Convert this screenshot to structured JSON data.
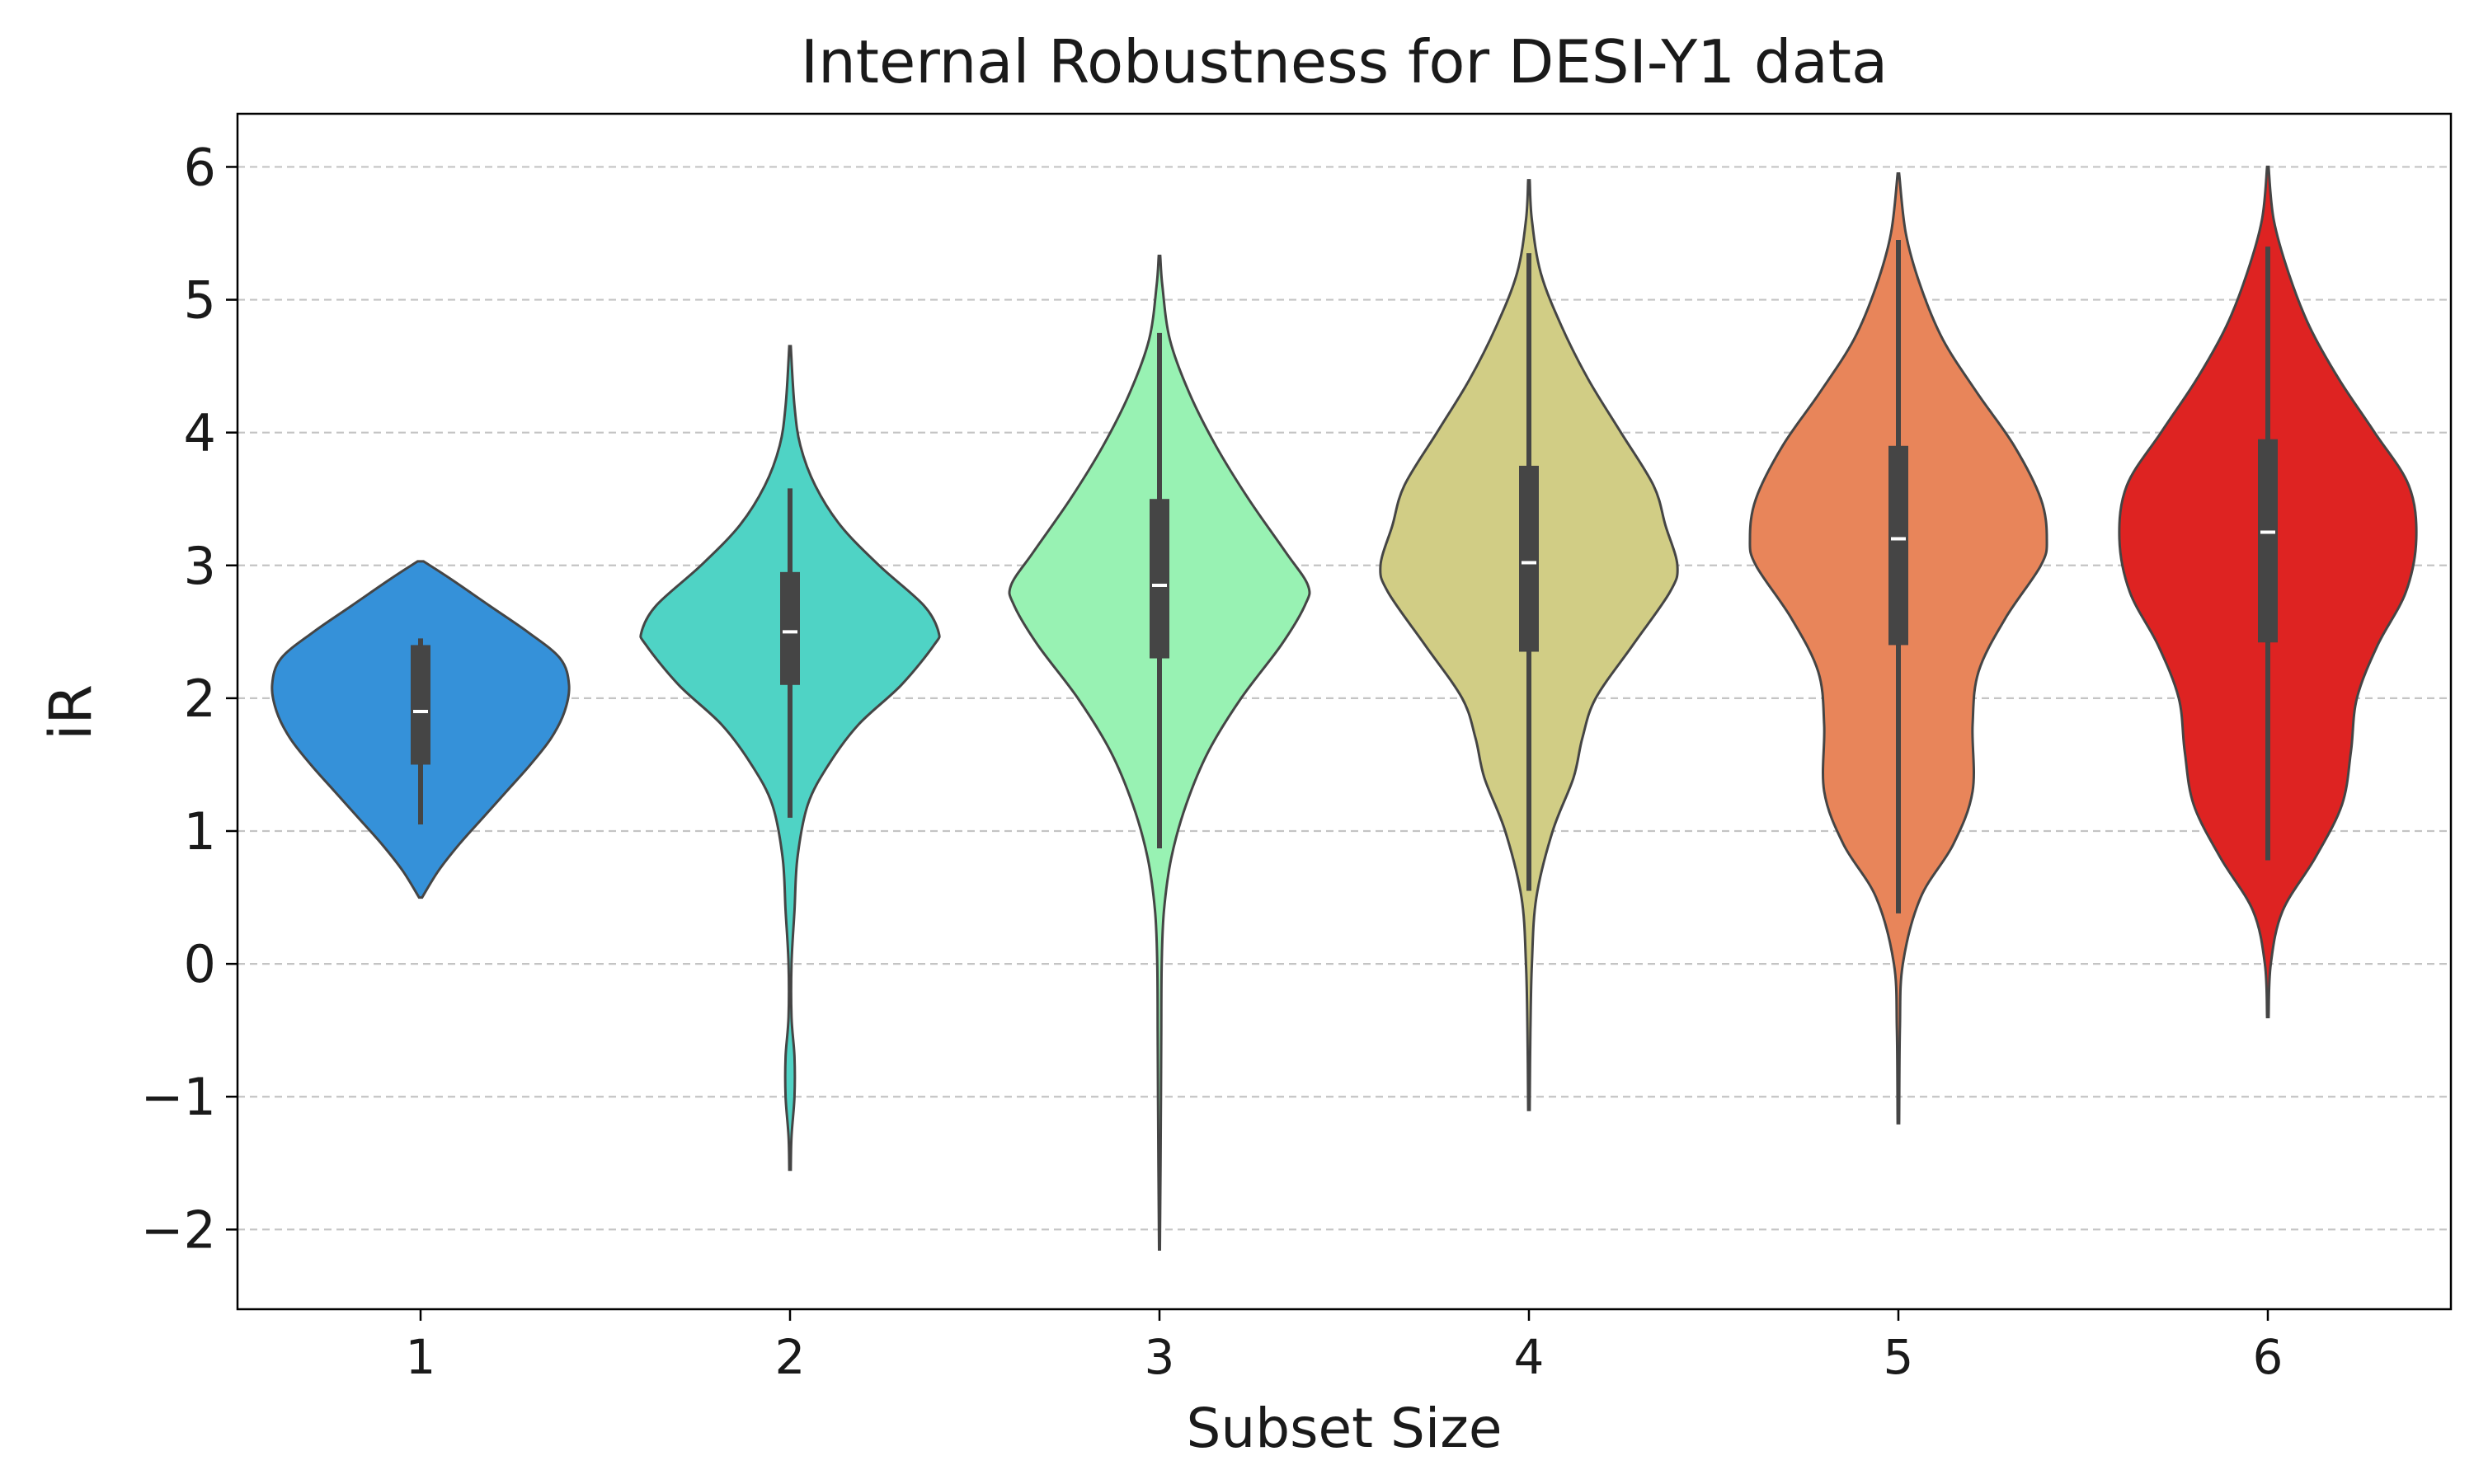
{
  "chart_data": {
    "type": "violin",
    "title": "Internal Robustness for DESI-Y1 data",
    "xlabel": "Subset Size",
    "ylabel": "iR",
    "categories": [
      "1",
      "2",
      "3",
      "4",
      "5",
      "6"
    ],
    "ylim": [
      -2.6,
      6.4
    ],
    "yticks": [
      -2,
      -1,
      0,
      1,
      2,
      3,
      4,
      5,
      6
    ],
    "ytick_labels": [
      "−2",
      "−1",
      "0",
      "1",
      "2",
      "3",
      "4",
      "5",
      "6"
    ],
    "grid": "horizontal dashed",
    "colors": [
      "#3591d9",
      "#4fd3c5",
      "#98f2b3",
      "#d1cd85",
      "#e8855a",
      "#de2322"
    ],
    "series": [
      {
        "category": "1",
        "median": 1.9,
        "q1": 1.5,
        "q3": 2.4,
        "whisker_low": 1.05,
        "whisker_high": 2.45,
        "density": [
          [
            0.5,
            0.01
          ],
          [
            0.7,
            0.12
          ],
          [
            0.9,
            0.26
          ],
          [
            1.1,
            0.42
          ],
          [
            1.3,
            0.58
          ],
          [
            1.5,
            0.74
          ],
          [
            1.7,
            0.88
          ],
          [
            1.9,
            0.97
          ],
          [
            2.1,
            1.0
          ],
          [
            2.3,
            0.94
          ],
          [
            2.5,
            0.72
          ],
          [
            2.7,
            0.46
          ],
          [
            2.9,
            0.2
          ],
          [
            3.03,
            0.02
          ]
        ]
      },
      {
        "category": "2",
        "median": 2.5,
        "q1": 2.1,
        "q3": 2.95,
        "whisker_low": 1.1,
        "whisker_high": 3.58,
        "density": [
          [
            -1.55,
            0.005
          ],
          [
            -1.3,
            0.01
          ],
          [
            -1.0,
            0.03
          ],
          [
            -0.7,
            0.03
          ],
          [
            -0.4,
            0.01
          ],
          [
            0.0,
            0.01
          ],
          [
            0.4,
            0.03
          ],
          [
            0.8,
            0.05
          ],
          [
            1.2,
            0.12
          ],
          [
            1.5,
            0.26
          ],
          [
            1.8,
            0.46
          ],
          [
            2.1,
            0.75
          ],
          [
            2.4,
            0.97
          ],
          [
            2.5,
            1.0
          ],
          [
            2.7,
            0.9
          ],
          [
            3.0,
            0.6
          ],
          [
            3.3,
            0.34
          ],
          [
            3.6,
            0.17
          ],
          [
            3.9,
            0.07
          ],
          [
            4.2,
            0.03
          ],
          [
            4.65,
            0.005
          ]
        ]
      },
      {
        "category": "3",
        "median": 2.85,
        "q1": 2.3,
        "q3": 3.5,
        "whisker_low": 0.87,
        "whisker_high": 4.75,
        "density": [
          [
            -2.15,
            0.003
          ],
          [
            -1.5,
            0.007
          ],
          [
            -1.0,
            0.01
          ],
          [
            -0.5,
            0.012
          ],
          [
            0.0,
            0.015
          ],
          [
            0.4,
            0.03
          ],
          [
            0.8,
            0.08
          ],
          [
            1.2,
            0.18
          ],
          [
            1.6,
            0.33
          ],
          [
            2.0,
            0.55
          ],
          [
            2.4,
            0.82
          ],
          [
            2.7,
            0.98
          ],
          [
            2.85,
            1.0
          ],
          [
            3.1,
            0.85
          ],
          [
            3.5,
            0.6
          ],
          [
            3.9,
            0.38
          ],
          [
            4.3,
            0.2
          ],
          [
            4.7,
            0.07
          ],
          [
            5.1,
            0.02
          ],
          [
            5.33,
            0.005
          ]
        ]
      },
      {
        "category": "4",
        "median": 3.02,
        "q1": 2.35,
        "q3": 3.75,
        "whisker_low": 0.55,
        "whisker_high": 5.35,
        "density": [
          [
            -1.1,
            0.005
          ],
          [
            -0.5,
            0.01
          ],
          [
            0.0,
            0.02
          ],
          [
            0.5,
            0.05
          ],
          [
            1.0,
            0.16
          ],
          [
            1.4,
            0.3
          ],
          [
            1.7,
            0.36
          ],
          [
            2.0,
            0.45
          ],
          [
            2.4,
            0.7
          ],
          [
            2.8,
            0.95
          ],
          [
            3.0,
            1.0
          ],
          [
            3.3,
            0.92
          ],
          [
            3.6,
            0.84
          ],
          [
            4.0,
            0.62
          ],
          [
            4.4,
            0.4
          ],
          [
            4.8,
            0.22
          ],
          [
            5.2,
            0.08
          ],
          [
            5.6,
            0.02
          ],
          [
            5.9,
            0.005
          ]
        ]
      },
      {
        "category": "5",
        "median": 3.2,
        "q1": 2.4,
        "q3": 3.9,
        "whisker_low": 0.38,
        "whisker_high": 5.45,
        "density": [
          [
            -1.2,
            0.005
          ],
          [
            -0.5,
            0.01
          ],
          [
            0.0,
            0.03
          ],
          [
            0.5,
            0.15
          ],
          [
            0.9,
            0.37
          ],
          [
            1.3,
            0.5
          ],
          [
            1.8,
            0.5
          ],
          [
            2.2,
            0.54
          ],
          [
            2.6,
            0.72
          ],
          [
            3.0,
            0.96
          ],
          [
            3.2,
            1.0
          ],
          [
            3.5,
            0.96
          ],
          [
            3.9,
            0.78
          ],
          [
            4.3,
            0.53
          ],
          [
            4.7,
            0.3
          ],
          [
            5.1,
            0.15
          ],
          [
            5.5,
            0.05
          ],
          [
            5.95,
            0.005
          ]
        ]
      },
      {
        "category": "6",
        "median": 3.25,
        "q1": 2.42,
        "q3": 3.95,
        "whisker_low": 0.78,
        "whisker_high": 5.4,
        "density": [
          [
            -0.4,
            0.005
          ],
          [
            0.0,
            0.02
          ],
          [
            0.4,
            0.1
          ],
          [
            0.8,
            0.32
          ],
          [
            1.2,
            0.5
          ],
          [
            1.6,
            0.56
          ],
          [
            2.0,
            0.6
          ],
          [
            2.4,
            0.74
          ],
          [
            2.8,
            0.93
          ],
          [
            3.2,
            1.0
          ],
          [
            3.6,
            0.95
          ],
          [
            4.0,
            0.72
          ],
          [
            4.4,
            0.48
          ],
          [
            4.8,
            0.28
          ],
          [
            5.2,
            0.14
          ],
          [
            5.6,
            0.04
          ],
          [
            6.0,
            0.005
          ]
        ]
      }
    ]
  }
}
